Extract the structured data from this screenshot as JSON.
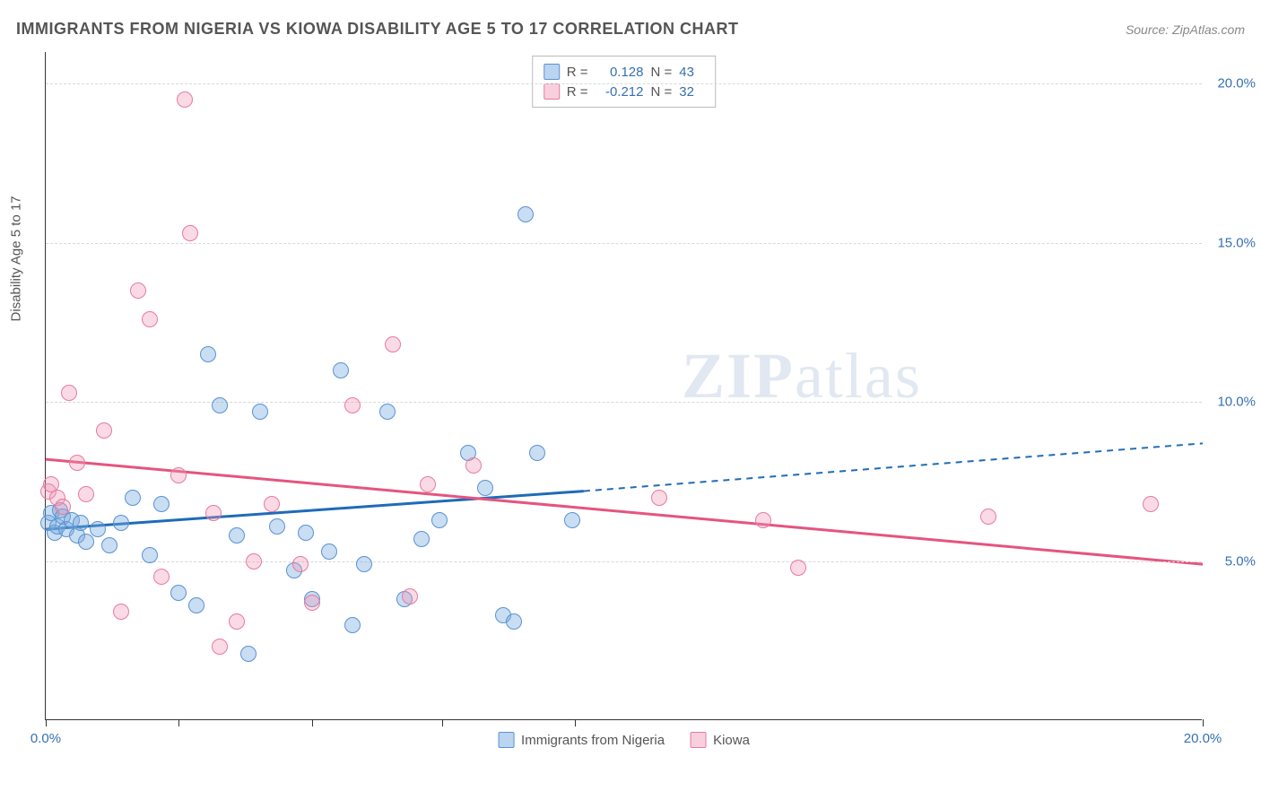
{
  "header": {
    "title": "IMMIGRANTS FROM NIGERIA VS KIOWA DISABILITY AGE 5 TO 17 CORRELATION CHART",
    "source_prefix": "Source: ",
    "source_name": "ZipAtlas.com"
  },
  "watermark": {
    "zip": "ZIP",
    "atlas": "atlas"
  },
  "y_axis": {
    "label": "Disability Age 5 to 17"
  },
  "chart": {
    "type": "scatter",
    "xlim": [
      0,
      20
    ],
    "ylim": [
      0,
      21
    ],
    "xtick_positions": [
      0,
      2.3,
      4.6,
      6.85,
      9.15,
      20
    ],
    "xtick_labels": {
      "0": "0.0%",
      "20": "20.0%"
    },
    "ytick_positions": [
      5,
      10,
      15,
      20
    ],
    "ytick_labels": {
      "5": "5.0%",
      "10": "10.0%",
      "15": "15.0%",
      "20": "20.0%"
    },
    "grid_color": "#d8d8d8",
    "background": "#ffffff",
    "series": [
      {
        "name": "Immigrants from Nigeria",
        "color_fill": "rgba(120,170,225,0.4)",
        "color_stroke": "#5a93cf",
        "trend_color": "#1f6bb7",
        "trend": {
          "x1": 0,
          "y1": 6.0,
          "x2_solid": 9.3,
          "y2_solid": 7.2,
          "x2": 20,
          "y2": 8.7
        },
        "R": "0.128",
        "N": "43",
        "points": [
          [
            0.05,
            6.2
          ],
          [
            0.1,
            6.5
          ],
          [
            0.15,
            5.9
          ],
          [
            0.2,
            6.1
          ],
          [
            0.25,
            6.6
          ],
          [
            0.3,
            6.4
          ],
          [
            0.35,
            6.0
          ],
          [
            0.45,
            6.3
          ],
          [
            0.55,
            5.8
          ],
          [
            0.6,
            6.2
          ],
          [
            0.7,
            5.6
          ],
          [
            0.9,
            6.0
          ],
          [
            1.1,
            5.5
          ],
          [
            1.3,
            6.2
          ],
          [
            1.5,
            7.0
          ],
          [
            1.8,
            5.2
          ],
          [
            2.0,
            6.8
          ],
          [
            2.3,
            4.0
          ],
          [
            2.6,
            3.6
          ],
          [
            2.8,
            11.5
          ],
          [
            3.0,
            9.9
          ],
          [
            3.3,
            5.8
          ],
          [
            3.5,
            2.1
          ],
          [
            3.7,
            9.7
          ],
          [
            4.0,
            6.1
          ],
          [
            4.3,
            4.7
          ],
          [
            4.5,
            5.9
          ],
          [
            4.6,
            3.8
          ],
          [
            4.9,
            5.3
          ],
          [
            5.1,
            11.0
          ],
          [
            5.3,
            3.0
          ],
          [
            5.5,
            4.9
          ],
          [
            5.9,
            9.7
          ],
          [
            6.2,
            3.8
          ],
          [
            6.5,
            5.7
          ],
          [
            6.8,
            6.3
          ],
          [
            7.3,
            8.4
          ],
          [
            7.6,
            7.3
          ],
          [
            7.9,
            3.3
          ],
          [
            8.1,
            3.1
          ],
          [
            8.3,
            15.9
          ],
          [
            8.5,
            8.4
          ],
          [
            9.1,
            6.3
          ]
        ]
      },
      {
        "name": "Kiowa",
        "color_fill": "rgba(240,150,180,0.35)",
        "color_stroke": "#e77aa0",
        "trend_color": "#e4557f",
        "trend": {
          "x1": 0,
          "y1": 8.2,
          "x2_solid": 20,
          "y2_solid": 4.9,
          "x2": 20,
          "y2": 4.9
        },
        "R": "-0.212",
        "N": "32",
        "points": [
          [
            0.05,
            7.2
          ],
          [
            0.1,
            7.4
          ],
          [
            0.2,
            7.0
          ],
          [
            0.3,
            6.7
          ],
          [
            0.4,
            10.3
          ],
          [
            0.55,
            8.1
          ],
          [
            0.7,
            7.1
          ],
          [
            1.0,
            9.1
          ],
          [
            1.3,
            3.4
          ],
          [
            1.6,
            13.5
          ],
          [
            1.8,
            12.6
          ],
          [
            2.0,
            4.5
          ],
          [
            2.3,
            7.7
          ],
          [
            2.4,
            19.5
          ],
          [
            2.5,
            15.3
          ],
          [
            2.9,
            6.5
          ],
          [
            3.0,
            2.3
          ],
          [
            3.3,
            3.1
          ],
          [
            3.6,
            5.0
          ],
          [
            3.9,
            6.8
          ],
          [
            4.4,
            4.9
          ],
          [
            4.6,
            3.7
          ],
          [
            5.3,
            9.9
          ],
          [
            6.0,
            11.8
          ],
          [
            6.3,
            3.9
          ],
          [
            6.6,
            7.4
          ],
          [
            7.4,
            8.0
          ],
          [
            10.6,
            7.0
          ],
          [
            12.4,
            6.3
          ],
          [
            13.0,
            4.8
          ],
          [
            16.3,
            6.4
          ],
          [
            19.1,
            6.8
          ]
        ]
      }
    ],
    "legend_labels": {
      "R": "R =",
      "N": "N ="
    }
  },
  "bottom_legend": {
    "series1": "Immigrants from Nigeria",
    "series2": "Kiowa"
  }
}
